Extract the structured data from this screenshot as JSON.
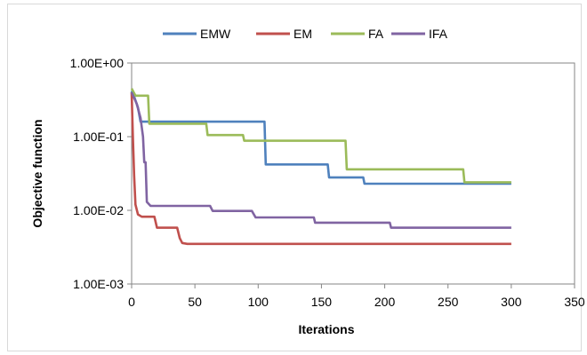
{
  "chart_data": {
    "type": "line",
    "xlabel": "Iterations",
    "ylabel": "Objective function",
    "xlim": [
      0,
      350
    ],
    "ylim": [
      0.001,
      1
    ],
    "yscale": "log",
    "x_ticks": [
      "0",
      "50",
      "100",
      "150",
      "200",
      "250",
      "300",
      "350"
    ],
    "y_ticks": [
      "1.00E+00",
      "1.00E-01",
      "1.00E-02",
      "1.00E-03"
    ],
    "legend_position": "top",
    "grid": false,
    "series": [
      {
        "name": "EMW",
        "color": "#4f81bd",
        "points": [
          [
            0,
            0.42
          ],
          [
            2,
            0.35
          ],
          [
            5,
            0.25
          ],
          [
            7,
            0.16
          ],
          [
            105,
            0.16
          ],
          [
            106,
            0.042
          ],
          [
            155,
            0.042
          ],
          [
            156,
            0.028
          ],
          [
            183,
            0.028
          ],
          [
            184,
            0.023
          ],
          [
            300,
            0.023
          ]
        ]
      },
      {
        "name": "EM",
        "color": "#c0504d",
        "points": [
          [
            0,
            0.4
          ],
          [
            1,
            0.1
          ],
          [
            2,
            0.03
          ],
          [
            3,
            0.012
          ],
          [
            5,
            0.0088
          ],
          [
            8,
            0.0082
          ],
          [
            18,
            0.0082
          ],
          [
            20,
            0.0058
          ],
          [
            36,
            0.0058
          ],
          [
            38,
            0.0042
          ],
          [
            40,
            0.0036
          ],
          [
            44,
            0.0035
          ],
          [
            300,
            0.0035
          ]
        ]
      },
      {
        "name": "FA",
        "color": "#9bbb59",
        "points": [
          [
            0,
            0.45
          ],
          [
            3,
            0.36
          ],
          [
            13,
            0.36
          ],
          [
            14,
            0.15
          ],
          [
            59,
            0.15
          ],
          [
            60,
            0.105
          ],
          [
            88,
            0.105
          ],
          [
            89,
            0.088
          ],
          [
            169,
            0.088
          ],
          [
            170,
            0.036
          ],
          [
            262,
            0.036
          ],
          [
            263,
            0.024
          ],
          [
            300,
            0.024
          ]
        ]
      },
      {
        "name": "IFA",
        "color": "#8064a2",
        "points": [
          [
            0,
            0.4
          ],
          [
            4,
            0.28
          ],
          [
            7,
            0.18
          ],
          [
            9,
            0.1
          ],
          [
            10,
            0.045
          ],
          [
            11,
            0.045
          ],
          [
            12,
            0.013
          ],
          [
            15,
            0.0115
          ],
          [
            62,
            0.0115
          ],
          [
            64,
            0.0098
          ],
          [
            95,
            0.0098
          ],
          [
            98,
            0.008
          ],
          [
            144,
            0.008
          ],
          [
            145,
            0.0068
          ],
          [
            204,
            0.0068
          ],
          [
            205,
            0.0058
          ],
          [
            300,
            0.0058
          ]
        ]
      }
    ]
  }
}
